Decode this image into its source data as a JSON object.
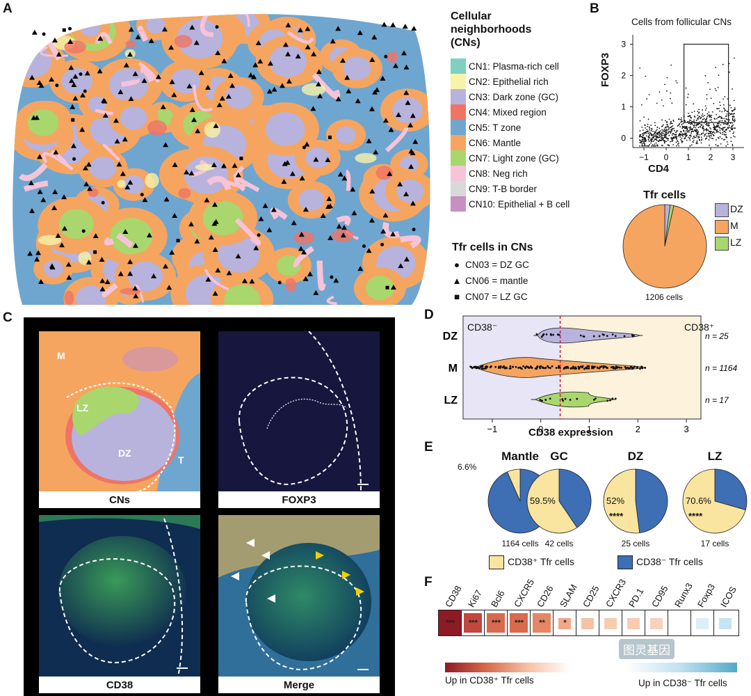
{
  "panels": {
    "A": "A",
    "B": "B",
    "C": "C",
    "D": "D",
    "E": "E",
    "F": "F"
  },
  "panelA": {
    "legend_title_lines": [
      "Cellular",
      "neighborhoods",
      "(CNs)"
    ],
    "cn_items": [
      {
        "label": "CN1: Plasma-rich cell",
        "color": "#7fd0c0"
      },
      {
        "label": "CN2: Epithelial rich",
        "color": "#f7f3a8"
      },
      {
        "label": "CN3: Dark zone (GC)",
        "color": "#b8b3dc"
      },
      {
        "label": "CN4: Mixed region",
        "color": "#ef7466"
      },
      {
        "label": "CN5: T zone",
        "color": "#6fa6d0"
      },
      {
        "label": "CN6: Mantle",
        "color": "#f5a560"
      },
      {
        "label": "CN7: Light zone (GC)",
        "color": "#a9d66d"
      },
      {
        "label": "CN8: Neg rich",
        "color": "#f6c3d8"
      },
      {
        "label": "CN9: T-B border",
        "color": "#d9d9d9"
      },
      {
        "label": "CN10: Epithelial + B cell",
        "color": "#c78fc2"
      }
    ],
    "tfr_title": "Tfr cells in CNs",
    "tfr_items": [
      {
        "symbol": "●",
        "label": "CN03 = DZ GC"
      },
      {
        "symbol": "▲",
        "label": "CN06 = mantle"
      },
      {
        "symbol": "■",
        "label": "CN07 = LZ GC"
      }
    ]
  },
  "panelB": {
    "scatter": {
      "title": "Cells from follicular CNs",
      "xlabel": "CD4",
      "ylabel": "FOXP3",
      "xticks": [
        "−1",
        "0",
        "1",
        "2",
        "3"
      ],
      "yticks": [
        "0",
        "1",
        "2",
        "3"
      ]
    },
    "pie_title": "Tfr cells",
    "pie_caption": "1206 cells",
    "legend": [
      {
        "label": "DZ",
        "color": "#b8b3dc"
      },
      {
        "label": "M",
        "color": "#f5a560"
      },
      {
        "label": "LZ",
        "color": "#a9d66d"
      }
    ]
  },
  "panelC": {
    "tiles": {
      "cns": "CNs",
      "foxp3": "FOXP3",
      "cd38": "CD38",
      "merge": "Merge"
    },
    "region_labels": {
      "m": "M",
      "lz": "LZ",
      "dz": "DZ",
      "t": "T"
    }
  },
  "panelE": {
    "legend_pos": "CD38⁺ Tfr cells",
    "legend_neg": "CD38⁻ Tfr cells",
    "pies": [
      {
        "title": "Mantle",
        "caption": "1164 cells",
        "pct_label": "6.6%",
        "stars": ""
      },
      {
        "title": "GC",
        "caption": "42 cells",
        "pct_label": "59.5%",
        "stars": ""
      },
      {
        "title": "DZ",
        "caption": "25 cells",
        "pct_label": "52%",
        "stars": "****"
      },
      {
        "title": "LZ",
        "caption": "17 cells",
        "pct_label": "70.6%",
        "stars": "****"
      }
    ]
  },
  "panelF": {
    "genes": [
      "CD38",
      "Ki67",
      "Bcl6",
      "CXCR5",
      "CD26",
      "SLAM",
      "CD25",
      "CXCR3",
      "PD.1",
      "CD95",
      "Runx3",
      "Foxp3",
      "ICOS"
    ],
    "stars": [
      "***",
      "***",
      "***",
      "***",
      "**",
      "*",
      "",
      "",
      "",
      "",
      "",
      "",
      ""
    ],
    "colors": [
      "#8e1a24",
      "#c2473f",
      "#d86a4e",
      "#d86a4e",
      "#e58664",
      "#f1a88a",
      "#f6c2a6",
      "#f7ccb2",
      "#f7ccb2",
      "#f8d1bc",
      "#ffffff",
      "#dceef6",
      "#c6e4f1"
    ],
    "up_pos": "Up in CD38⁺ Tfr cells",
    "up_neg": "Up in CD38⁻ Tfr cells",
    "watermark": "图灵基因"
  },
  "chart_data": [
    {
      "type": "scatter",
      "title": "Cells from follicular CNs",
      "xlabel": "CD4",
      "ylabel": "FOXP3",
      "xlim": [
        -1.5,
        3.5
      ],
      "ylim": [
        -0.3,
        3.3
      ],
      "gate": {
        "x": [
          0.8,
          2.8
        ],
        "y": [
          0.5,
          3.0
        ]
      }
    },
    {
      "type": "pie",
      "title": "Tfr cells",
      "labels": [
        "DZ",
        "M",
        "LZ"
      ],
      "values": [
        25,
        1164,
        17
      ],
      "colors": [
        "#b8b3dc",
        "#f5a560",
        "#a9d66d"
      ],
      "total": 1206
    },
    {
      "type": "violin",
      "xlabel": "CD38 expression",
      "categories": [
        "DZ",
        "M",
        "LZ"
      ],
      "n": [
        25,
        1164,
        17
      ],
      "n_labels": [
        "n = 25",
        "n = 1164",
        "n = 17"
      ],
      "ranges": [
        [
          -0.15,
          2.1
        ],
        [
          -1.45,
          2.15
        ],
        [
          -0.2,
          1.55
        ]
      ],
      "medians": [
        0.45,
        -0.3,
        0.7
      ],
      "threshold": 0.4,
      "xlim": [
        -1.6,
        3.3
      ],
      "xticks": [
        "−1",
        "0",
        "1",
        "2",
        "3"
      ],
      "left_label": "CD38⁻",
      "right_label": "CD38⁺",
      "colors": [
        "#b8b3dc",
        "#f5a560",
        "#a9d66d"
      ]
    },
    {
      "type": "pie",
      "series": [
        {
          "name": "Mantle",
          "cd38_pos_pct": 6.6,
          "n": 1164
        },
        {
          "name": "GC",
          "cd38_pos_pct": 59.5,
          "n": 42
        },
        {
          "name": "DZ",
          "cd38_pos_pct": 52,
          "n": 25
        },
        {
          "name": "LZ",
          "cd38_pos_pct": 70.6,
          "n": 17
        }
      ],
      "colors": {
        "pos": "#f9e4a0",
        "neg": "#3e6eb4"
      }
    },
    {
      "type": "heatmap",
      "categories": [
        "CD38",
        "Ki67",
        "Bcl6",
        "CXCR5",
        "CD26",
        "SLAM",
        "CD25",
        "CXCR3",
        "PD.1",
        "CD95",
        "Runx3",
        "Foxp3",
        "ICOS"
      ],
      "significance": [
        "***",
        "***",
        "***",
        "***",
        "**",
        "*",
        "",
        "",
        "",
        "",
        "",
        "",
        ""
      ]
    }
  ]
}
